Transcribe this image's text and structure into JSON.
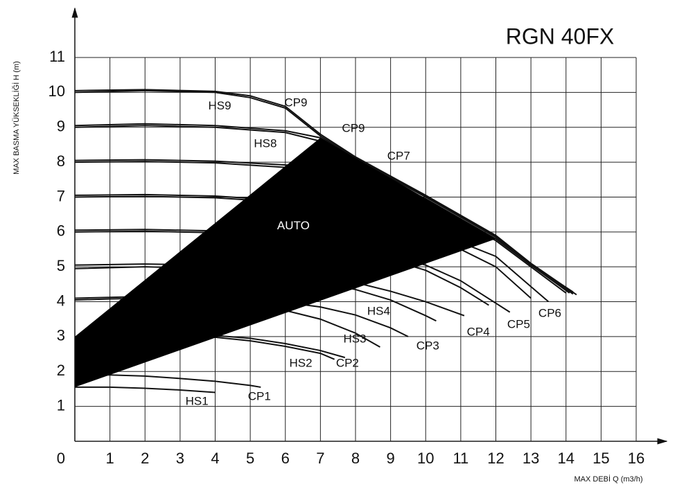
{
  "chart_data": {
    "type": "line",
    "title": "RGN 40FX",
    "x_label": "MAX DEBİ  Q (m3/h)",
    "y_label": "MAX BASMA YÜKSEKLİĞİ H (m)",
    "xlim": [
      0,
      16
    ],
    "ylim": [
      0,
      11
    ],
    "xticks": [
      1,
      2,
      3,
      4,
      5,
      6,
      7,
      8,
      9,
      10,
      11,
      12,
      13,
      14,
      15,
      16
    ],
    "yticks": [
      0,
      1,
      2,
      3,
      4,
      5,
      6,
      7,
      8,
      9,
      10,
      11
    ],
    "grid": true,
    "color": "#111111",
    "series": [
      {
        "name": "HS1",
        "x": [
          0,
          1,
          2,
          3,
          4
        ],
        "values": [
          1.55,
          1.55,
          1.52,
          1.47,
          1.4
        ]
      },
      {
        "name": "CP1",
        "x": [
          0,
          1,
          2,
          3,
          4,
          5,
          5.3
        ],
        "values": [
          1.9,
          1.9,
          1.87,
          1.8,
          1.72,
          1.6,
          1.55
        ]
      },
      {
        "name": "HS2",
        "x": [
          2,
          3,
          4,
          5,
          6,
          7,
          7.4
        ],
        "values": [
          3.0,
          3.0,
          2.98,
          2.88,
          2.72,
          2.52,
          2.35
        ]
      },
      {
        "name": "CP2",
        "x": [
          2,
          3,
          4,
          5,
          6,
          7,
          7.7
        ],
        "values": [
          3.05,
          3.05,
          3.03,
          2.95,
          2.8,
          2.6,
          2.4
        ]
      },
      {
        "name": "HS3",
        "x": [
          0,
          1,
          2,
          3,
          4,
          5,
          6,
          7,
          8,
          8.7
        ],
        "values": [
          4.05,
          4.08,
          4.1,
          4.08,
          4.0,
          3.9,
          3.75,
          3.5,
          3.1,
          2.7
        ]
      },
      {
        "name": "CP3",
        "x": [
          0,
          2,
          4,
          6,
          7,
          8,
          9,
          9.5
        ],
        "values": [
          4.1,
          4.15,
          4.12,
          3.98,
          3.85,
          3.62,
          3.25,
          3.0
        ]
      },
      {
        "name": "HS4",
        "x": [
          0,
          2,
          4,
          6,
          8,
          9,
          10,
          10.3
        ],
        "values": [
          4.95,
          5.0,
          4.95,
          4.75,
          4.35,
          4.05,
          3.6,
          3.45
        ]
      },
      {
        "name": "CP4",
        "x": [
          0,
          2,
          4,
          6,
          8,
          9,
          10,
          11.1
        ],
        "values": [
          5.05,
          5.08,
          5.05,
          4.9,
          4.55,
          4.3,
          4.0,
          3.6
        ]
      },
      {
        "x": [
          0,
          2,
          4,
          6,
          8,
          10,
          11,
          11.8
        ],
        "values": [
          6.0,
          6.02,
          5.98,
          5.85,
          5.5,
          4.9,
          4.4,
          3.9
        ]
      },
      {
        "name": "CP5",
        "x": [
          0,
          2,
          4,
          6,
          8,
          10,
          11,
          12.4
        ],
        "values": [
          6.05,
          6.07,
          6.03,
          5.9,
          5.6,
          5.05,
          4.6,
          3.7
        ]
      },
      {
        "x": [
          0,
          2,
          4,
          6,
          8,
          10,
          12,
          13.0
        ],
        "values": [
          7.0,
          7.02,
          6.98,
          6.85,
          6.5,
          6.0,
          5.0,
          4.1
        ]
      },
      {
        "name": "CP6",
        "x": [
          0,
          2,
          4,
          6,
          8,
          10,
          12,
          13.5
        ],
        "values": [
          7.05,
          7.07,
          7.03,
          6.9,
          6.6,
          6.1,
          5.3,
          4.0
        ]
      },
      {
        "x": [
          0,
          2,
          4,
          6,
          8,
          10,
          12,
          13,
          14
        ],
        "values": [
          8.0,
          8.02,
          7.98,
          7.85,
          7.6,
          6.85,
          5.75,
          5.0,
          4.25
        ]
      },
      {
        "name": "CP7",
        "x": [
          0,
          2,
          4,
          6,
          8,
          10,
          12,
          13,
          14.2
        ],
        "values": [
          8.05,
          8.07,
          8.03,
          7.92,
          7.9,
          6.95,
          5.8,
          5.05,
          4.25
        ]
      },
      {
        "name": "HS8",
        "x": [
          0,
          2,
          4,
          6,
          7,
          8,
          10,
          12,
          13,
          14.1
        ],
        "values": [
          9.0,
          9.05,
          9.0,
          8.85,
          8.6,
          8.1,
          7.0,
          5.85,
          5.05,
          4.25
        ]
      },
      {
        "name": "CP9",
        "x": [
          0,
          2,
          4,
          6,
          7,
          8,
          10,
          12,
          13,
          14.2
        ],
        "values": [
          9.05,
          9.1,
          9.05,
          8.9,
          8.7,
          8.12,
          7.02,
          5.87,
          5.07,
          4.28
        ]
      },
      {
        "name": "HS9",
        "x": [
          0,
          2,
          4,
          5,
          6,
          7,
          8,
          10,
          12,
          13,
          14.2
        ],
        "values": [
          10.0,
          10.05,
          10.0,
          9.85,
          9.55,
          8.75,
          8.12,
          7.02,
          5.87,
          5.07,
          4.22
        ]
      },
      {
        "name": "CP9",
        "x": [
          0,
          2,
          4,
          5,
          6,
          7,
          8,
          10,
          12,
          13,
          14.3
        ],
        "values": [
          10.05,
          10.08,
          10.03,
          9.9,
          9.6,
          8.8,
          8.15,
          7.05,
          5.9,
          5.1,
          4.2
        ]
      }
    ],
    "auto_region": {
      "x": [
        0,
        7,
        12,
        0
      ],
      "y": [
        3.0,
        8.7,
        5.8,
        1.55
      ],
      "color": "#000000"
    },
    "annotations": [
      {
        "text": "AUTO",
        "x": 6.23,
        "y": 6.16,
        "color": "#ffffff"
      },
      {
        "text": "HS1",
        "x": 3.48,
        "y": 1.13
      },
      {
        "text": "CP1",
        "x": 5.26,
        "y": 1.27
      },
      {
        "text": "HS2",
        "x": 6.44,
        "y": 2.22
      },
      {
        "text": "CP2",
        "x": 7.77,
        "y": 2.22
      },
      {
        "text": "HS3",
        "x": 7.98,
        "y": 2.92
      },
      {
        "text": "CP3",
        "x": 10.06,
        "y": 2.72
      },
      {
        "text": "HS4",
        "x": 8.66,
        "y": 3.71
      },
      {
        "text": "CP4",
        "x": 11.5,
        "y": 3.12
      },
      {
        "text": "CP5",
        "x": 12.65,
        "y": 3.34
      },
      {
        "text": "CP6",
        "x": 13.54,
        "y": 3.65
      },
      {
        "text": "CP7",
        "x": 9.23,
        "y": 8.16
      },
      {
        "text": "HS8",
        "x": 5.43,
        "y": 8.52
      },
      {
        "text": "CP9",
        "x": 7.94,
        "y": 8.95
      },
      {
        "text": "HS9",
        "x": 4.13,
        "y": 9.6
      },
      {
        "text": "CP9",
        "x": 6.3,
        "y": 9.69
      }
    ]
  }
}
